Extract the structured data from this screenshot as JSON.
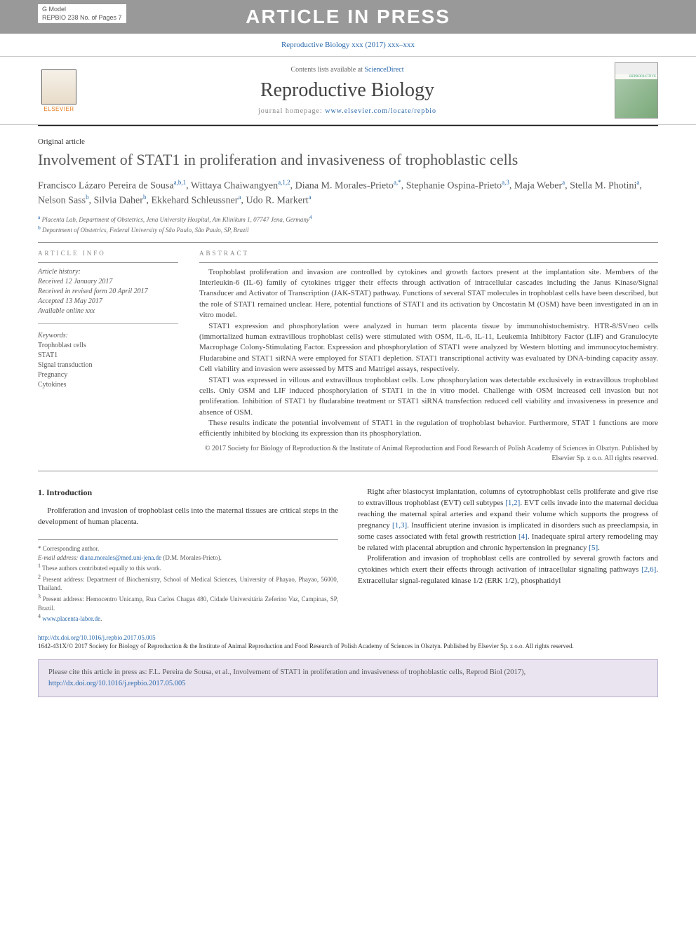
{
  "header": {
    "gmodel_line1": "G Model",
    "gmodel_line2": "REPBIO 238 No. of Pages 7",
    "watermark": "ARTICLE IN PRESS"
  },
  "citation_top": "Reproductive Biology xxx (2017) xxx–xxx",
  "banner": {
    "contents_prefix": "Contents lists available at ",
    "contents_link": "ScienceDirect",
    "journal_name": "Reproductive Biology",
    "homepage_prefix": "journal homepage: ",
    "homepage_link": "www.elsevier.com/locate/repbio",
    "elsevier_label": "ELSEVIER",
    "cover_title": "REPRODUCTIVE"
  },
  "article": {
    "type": "Original article",
    "title": "Involvement of STAT1 in proliferation and invasiveness of trophoblastic cells",
    "authors_html": "Francisco Lázaro Pereira de Sousa<sup>a,b,1</sup>, Wittaya Chaiwangyen<sup>a,1,2</sup>, Diana M. Morales-Prieto<sup>a,*</sup>, Stephanie Ospina-Prieto<sup>a,3</sup>, Maja Weber<sup>a</sup>, Stella M. Photini<sup>a</sup>, Nelson Sass<sup>b</sup>, Silvia Daher<sup>b</sup>, Ekkehard Schleussner<sup>a</sup>, Udo R. Markert<sup>a</sup>",
    "affiliations": [
      "<sup>a</sup> Placenta Lab, Department of Obstetrics, Jena University Hospital, Am Klinikum 1, 07747 Jena, Germany<sup>4</sup>",
      "<sup>b</sup> Department of Obstetrics, Federal University of São Paulo, São Paulo, SP, Brazil"
    ]
  },
  "info": {
    "article_info_label": "ARTICLE INFO",
    "abstract_label": "ABSTRACT",
    "history_head": "Article history:",
    "history_lines": [
      "Received 12 January 2017",
      "Received in revised form 20 April 2017",
      "Accepted 13 May 2017",
      "Available online xxx"
    ],
    "keywords_head": "Keywords:",
    "keywords": [
      "Trophoblast cells",
      "STAT1",
      "Signal transduction",
      "Pregnancy",
      "Cytokines"
    ]
  },
  "abstract_paragraphs": [
    "Trophoblast proliferation and invasion are controlled by cytokines and growth factors present at the implantation site. Members of the Interleukin-6 (IL-6) family of cytokines trigger their effects through activation of intracellular cascades including the Janus Kinase/Signal Transducer and Activator of Transcription (JAK-STAT) pathway. Functions of several STAT molecules in trophoblast cells have been described, but the role of STAT1 remained unclear. Here, potential functions of STAT1 and its activation by Oncostatin M (OSM) have been investigated in an in vitro model.",
    "STAT1 expression and phosphorylation were analyzed in human term placenta tissue by immunohistochemistry. HTR-8/SVneo cells (immortalized human extravillous trophoblast cells) were stimulated with OSM, IL-6, IL-11, Leukemia Inhibitory Factor (LIF) and Granulocyte Macrophage Colony-Stimulating Factor. Expression and phosphorylation of STAT1 were analyzed by Western blotting and immunocytochemistry. Fludarabine and STAT1 siRNA were employed for STAT1 depletion. STAT1 transcriptional activity was evaluated by DNA-binding capacity assay. Cell viability and invasion were assessed by MTS and Matrigel assays, respectively.",
    "STAT1 was expressed in villous and extravillous trophoblast cells. Low phosphorylation was detectable exclusively in extravillous trophoblast cells. Only OSM and LIF induced phosphorylation of STAT1 in the in vitro model. Challenge with OSM increased cell invasion but not proliferation. Inhibition of STAT1 by fludarabine treatment or STAT1 siRNA transfection reduced cell viability and invasiveness in presence and absence of OSM.",
    "These results indicate the potential involvement of STAT1 in the regulation of trophoblast behavior. Furthermore, STAT 1 functions are more efficiently inhibited by blocking its expression than its phosphorylation."
  ],
  "copyright": "© 2017 Society for Biology of Reproduction & the Institute of Animal Reproduction and Food Research of Polish Academy of Sciences in Olsztyn. Published by Elsevier Sp. z o.o. All rights reserved.",
  "body": {
    "intro_heading": "1. Introduction",
    "left_paragraphs": [
      "Proliferation and invasion of trophoblast cells into the maternal tissues are critical steps in the development of human placenta."
    ],
    "right_paragraphs": [
      "Right after blastocyst implantation, columns of cytotrophoblast cells proliferate and give rise to extravillous trophoblast (EVT) cell subtypes <span class='ref-link'>[1,2]</span>. EVT cells invade into the maternal decidua reaching the maternal spiral arteries and expand their volume which supports the progress of pregnancy <span class='ref-link'>[1,3]</span>. Insufficient uterine invasion is implicated in disorders such as preeclampsia, in some cases associated with fetal growth restriction <span class='ref-link'>[4]</span>. Inadequate spiral artery remodeling may be related with placental abruption and chronic hypertension in pregnancy <span class='ref-link'>[5]</span>.",
      "Proliferation and invasion of trophoblast cells are controlled by several growth factors and cytokines which exert their effects through activation of intracellular signaling pathways <span class='ref-link'>[2,6]</span>. Extracellular signal-regulated kinase 1/2 (ERK 1/2), phosphatidyl"
    ]
  },
  "footnotes": {
    "corr": "* Corresponding author.",
    "email_label": "E-mail address: ",
    "email": "diana.morales@med.uni-jena.de",
    "email_suffix": " (D.M. Morales-Prieto).",
    "notes": [
      "<sup>1</sup> These authors contributed equally to this work.",
      "<sup>2</sup> Present address: Department of Biochemistry, School of Medical Sciences, University of Phayao, Phayao, 56000, Thailand.",
      "<sup>3</sup> Present address: Hemocentro Unicamp, Rua Carlos Chagas 480, Cidade Universitária Zeferino Vaz, Campinas, SP, Brazil.",
      "<sup>4</sup> <span class='fn-link'>www.placenta-labor.de</span>."
    ]
  },
  "footer": {
    "doi": "http://dx.doi.org/10.1016/j.repbio.2017.05.005",
    "line2": "1642-431X/© 2017 Society for Biology of Reproduction & the Institute of Animal Reproduction and Food Research of Polish Academy of Sciences in Olsztyn. Published by Elsevier Sp. z o.o. All rights reserved."
  },
  "citebox": {
    "text_prefix": "Please cite this article in press as: F.L. Pereira de Sousa, et al., Involvement of STAT1 in proliferation and invasiveness of trophoblastic cells, Reprod Biol (2017), ",
    "doi": "http://dx.doi.org/10.1016/j.repbio.2017.05.005"
  },
  "colors": {
    "link": "#2968aa",
    "watermark_bg": "#999999",
    "title_color": "#58585a",
    "citebox_bg": "#e9e4f0",
    "citebox_border": "#b8b0cc"
  }
}
